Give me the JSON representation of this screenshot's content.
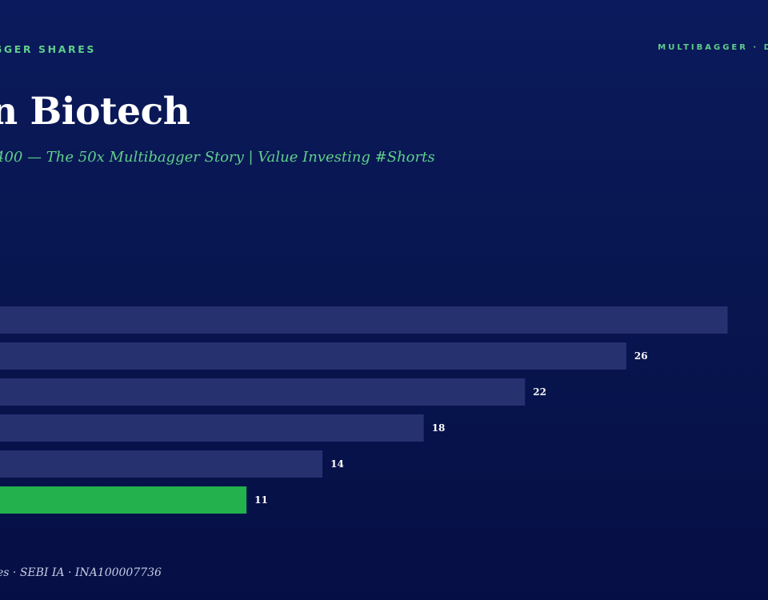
{
  "header": {
    "kicker": "GGER SHARES",
    "brand": "MULTIBAGGER · D"
  },
  "title": "n Biotech",
  "subtitle": "400 — The 50x Multibagger Story | Value Investing #Shorts",
  "footer": "es · SEBI IA · INA100007736",
  "colors": {
    "bar": "#263170",
    "highlight": "#22b14c",
    "accent": "#5fcf8a",
    "background": "#081650"
  },
  "chart_data": {
    "type": "bar",
    "orientation": "horizontal",
    "values": [
      30,
      26,
      22,
      18,
      14,
      11
    ],
    "value_labels": [
      "",
      "26",
      "22",
      "18",
      "14",
      "11"
    ],
    "highlight_index": 5,
    "xlim": [
      0,
      30
    ]
  }
}
